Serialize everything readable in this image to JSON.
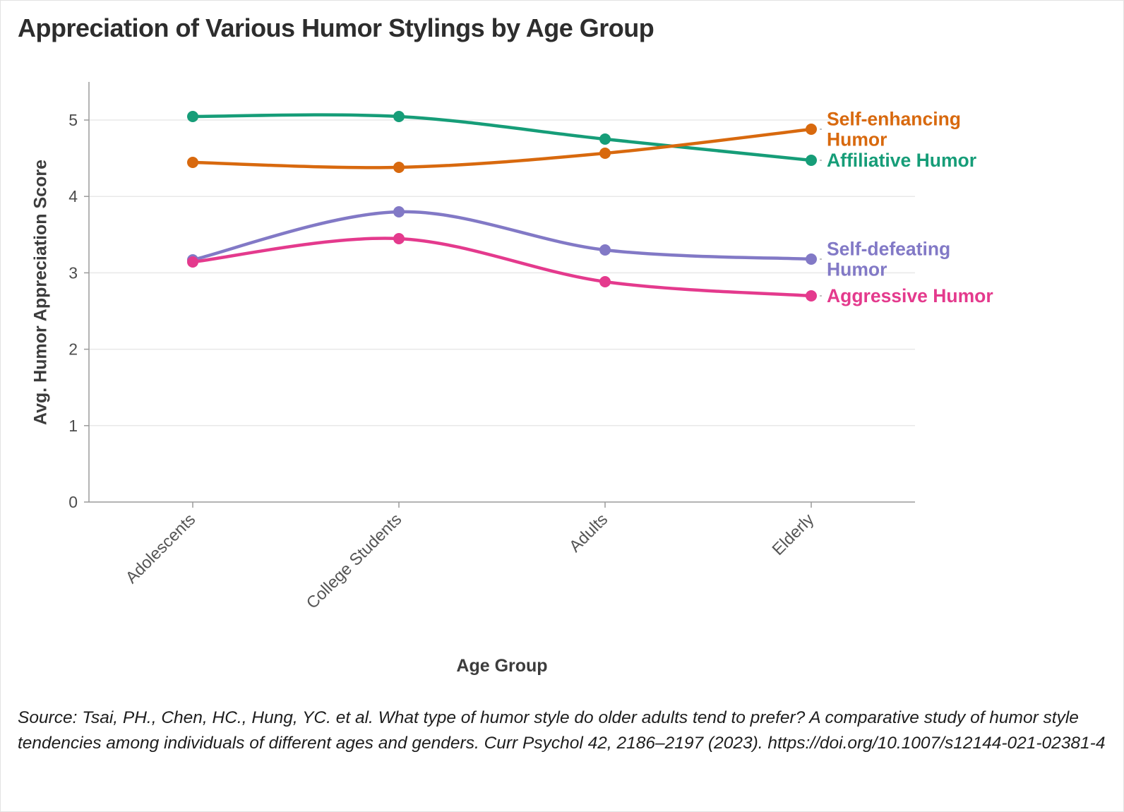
{
  "title": "Appreciation of Various Humor Stylings by Age Group",
  "source": "Source: Tsai, PH., Chen, HC., Hung, YC. et al. What type of humor style do older adults tend to prefer? A comparative study of humor style tendencies among individuals of different ages and genders. Curr Psychol 42, 2186–2197 (2023). https://doi.org/10.1007/s12144-021-02381-4",
  "chart_data": {
    "type": "line",
    "x": [
      "Adolescents",
      "College Students",
      "Adults",
      "Elderly"
    ],
    "xlabel": "Age Group",
    "ylabel": "Avg. Humor Appreciation Score",
    "ylim": [
      0,
      5.5
    ],
    "yticks": [
      0,
      1,
      2,
      3,
      4,
      5
    ],
    "grid": true,
    "legend_position": "direct-labels-right",
    "curve": "smooth",
    "series": [
      {
        "name": "Affiliative Humor",
        "label_lines": [
          "Affiliative Humor"
        ],
        "color": "#169d78",
        "values": [
          5.05,
          5.05,
          4.75,
          4.47
        ]
      },
      {
        "name": "Self-enhancing Humor",
        "label_lines": [
          "Self-enhancing",
          "Humor"
        ],
        "color": "#d8690e",
        "values": [
          4.45,
          4.38,
          4.57,
          4.88
        ]
      },
      {
        "name": "Self-defeating Humor",
        "label_lines": [
          "Self-defeating",
          "Humor"
        ],
        "color": "#8279c6",
        "values": [
          3.17,
          3.8,
          3.3,
          3.18
        ]
      },
      {
        "name": "Aggressive Humor",
        "label_lines": [
          "Aggressive Humor"
        ],
        "color": "#e43a8d",
        "values": [
          3.14,
          3.45,
          2.88,
          2.7
        ]
      }
    ]
  }
}
